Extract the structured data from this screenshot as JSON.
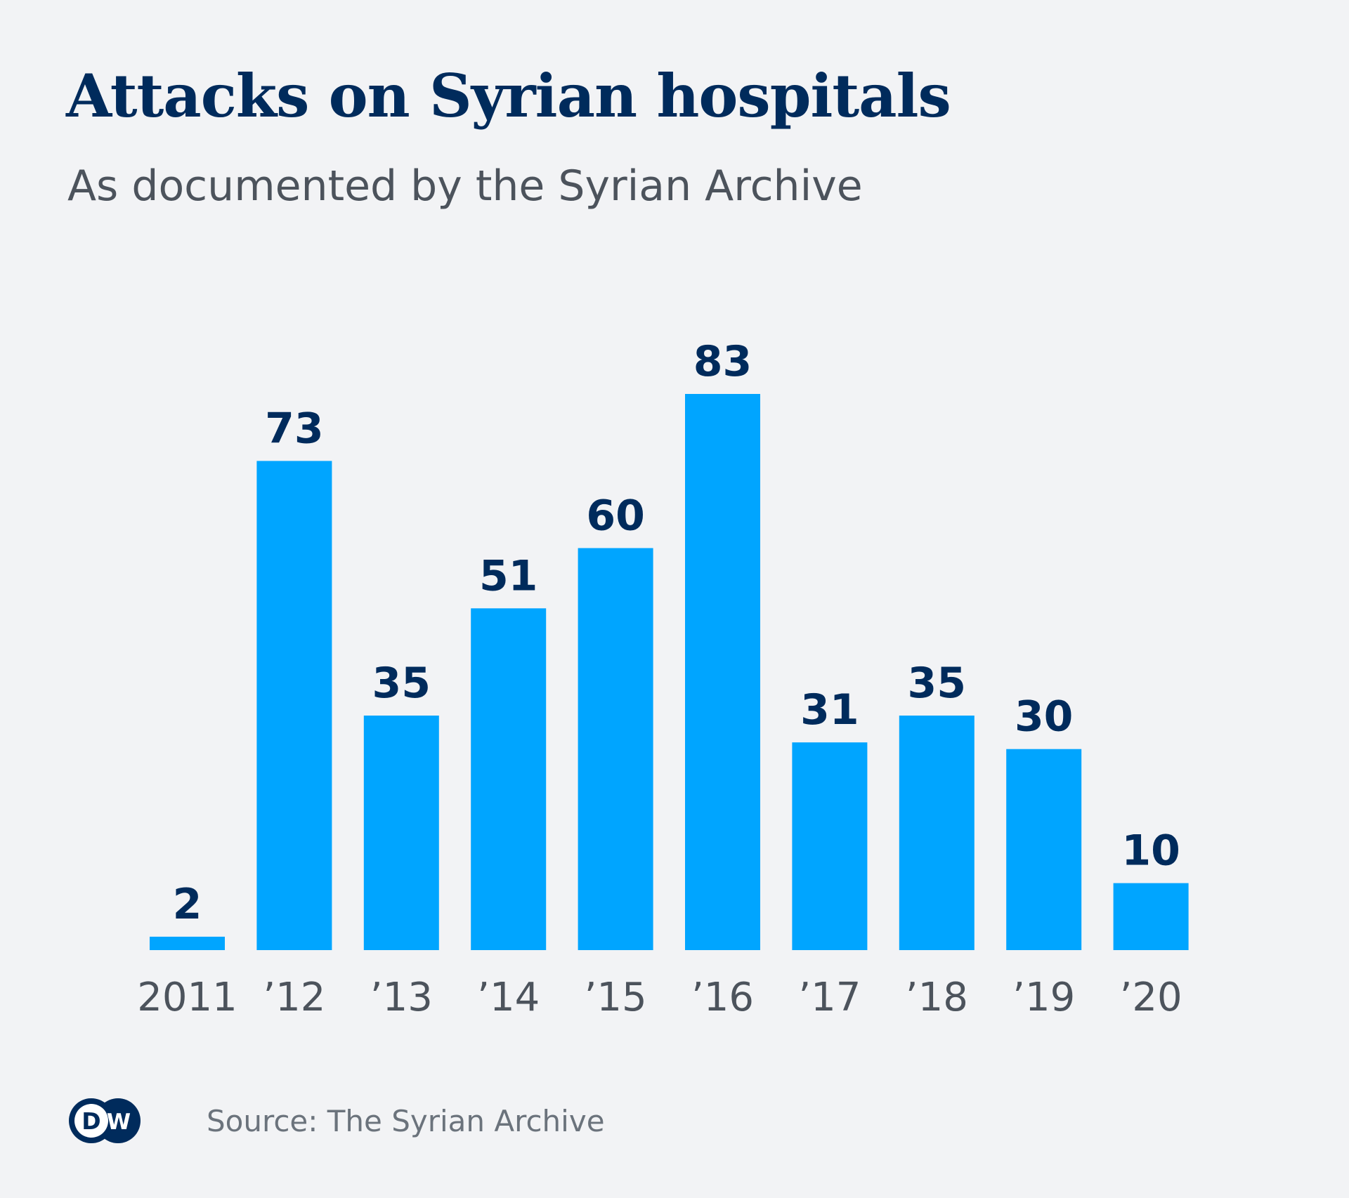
{
  "header": {
    "title": "Attacks on Syrian hospitals",
    "subtitle": "As documented by the Syrian Archive"
  },
  "footer": {
    "source": "Source: The Syrian Archive",
    "logo": {
      "icon": "dw-logo-icon",
      "letters": [
        "D",
        "W"
      ]
    }
  },
  "colors": {
    "background": "#f2f3f5",
    "bar": "#00a5ff",
    "title": "#002b5c",
    "value_label": "#002b5c",
    "axis_label": "#4c535c",
    "source": "#6b737c"
  },
  "chart_data": {
    "type": "bar",
    "title": "Attacks on Syrian hospitals",
    "subtitle": "As documented by the Syrian Archive",
    "categories": [
      "2011",
      "’12",
      "’13",
      "’14",
      "’15",
      "’16",
      "’17",
      "’18",
      "’19",
      "’20"
    ],
    "values": [
      2,
      73,
      35,
      51,
      60,
      83,
      31,
      35,
      30,
      10
    ],
    "data_labels": [
      "2",
      "73",
      "35",
      "51",
      "60",
      "83",
      "31",
      "35",
      "30",
      "10"
    ],
    "xlabel": "",
    "ylabel": "",
    "ylim": [
      0,
      83
    ],
    "grid": false,
    "legend": "none",
    "source": "Source: The Syrian Archive"
  }
}
